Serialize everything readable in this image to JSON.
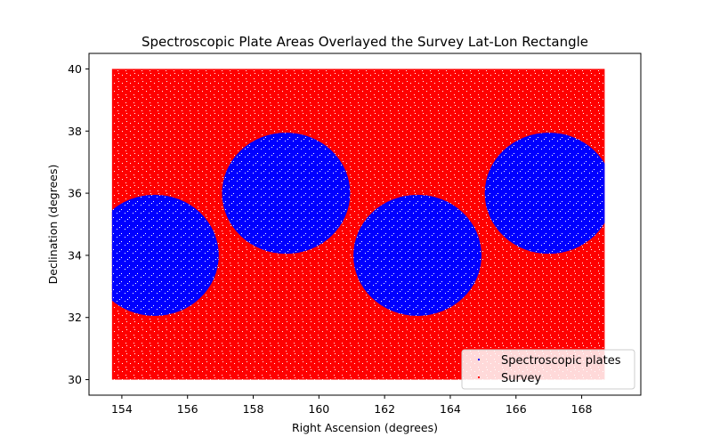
{
  "chart_data": {
    "type": "scatter",
    "title": "Spectroscopic Plate Areas Overlayed the Survey Lat-Lon Rectangle",
    "xlabel": "Right Ascension (degrees)",
    "ylabel": "Declination (degrees)",
    "xlim": [
      153.0,
      169.8
    ],
    "ylim": [
      29.5,
      40.5
    ],
    "xticks": [
      154,
      156,
      158,
      160,
      162,
      164,
      166,
      168
    ],
    "yticks": [
      30,
      32,
      34,
      36,
      38,
      40
    ],
    "grid": false,
    "legend_position": "bottom-right",
    "survey_region": {
      "ra_min": 153.7,
      "ra_max": 168.7,
      "dec_min": 30,
      "dec_max": 40
    },
    "series": [
      {
        "name": "Spectroscopic plates",
        "color": "#0000ff",
        "marker": "point",
        "plates": [
          {
            "center_ra": 155.0,
            "center_dec": 34.0,
            "radius_deg": 1.95
          },
          {
            "center_ra": 159.0,
            "center_dec": 36.0,
            "radius_deg": 1.95
          },
          {
            "center_ra": 163.0,
            "center_dec": 34.0,
            "radius_deg": 1.95
          },
          {
            "center_ra": 167.0,
            "center_dec": 36.0,
            "radius_deg": 1.95
          }
        ]
      },
      {
        "name": "Survey",
        "color": "#ff0000",
        "marker": "point",
        "region": "survey_region"
      }
    ]
  }
}
